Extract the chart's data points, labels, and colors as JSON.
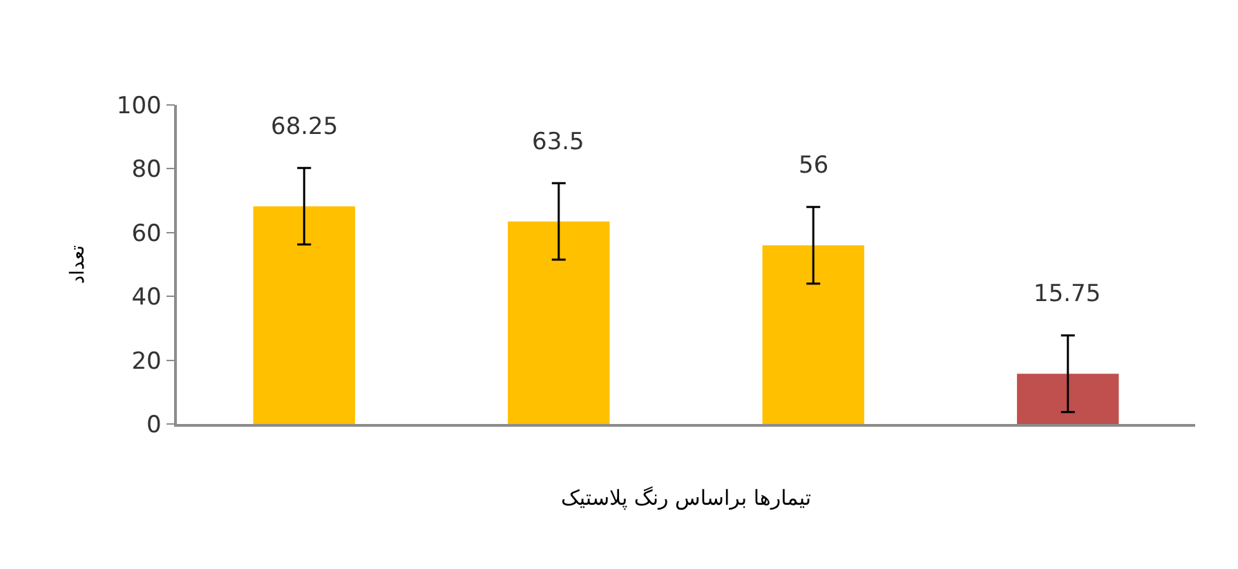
{
  "chart_data": {
    "type": "bar",
    "xlabel": "تیمارها براساس رنگ پلاستیک",
    "ylabel": "تعداد",
    "categories": [
      null,
      null,
      null,
      null
    ],
    "values": [
      68.25,
      63.5,
      56,
      15.75
    ],
    "colors": [
      "#ffc000",
      "#ffc000",
      "#ffc000",
      "#c0504d"
    ],
    "errors": [
      12,
      12,
      12,
      12
    ],
    "data_labels": true,
    "ylim": [
      0,
      100
    ],
    "yticks": [
      0,
      20,
      40,
      60,
      80,
      100
    ]
  }
}
